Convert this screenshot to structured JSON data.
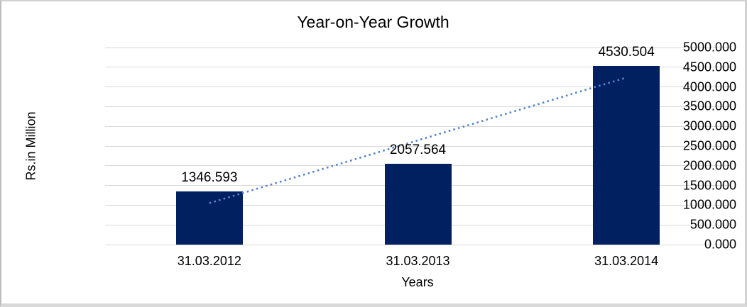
{
  "frame": {
    "border_color": "#d2d2d2",
    "background": "#ffffff"
  },
  "chart_data": {
    "type": "bar",
    "title": "Year-on-Year Growth",
    "xlabel": "Years",
    "ylabel": "Rs.in Million",
    "categories": [
      "31.03.2012",
      "31.03.2013",
      "31.03.2014"
    ],
    "values": [
      1346.593,
      2057.564,
      4530.504
    ],
    "data_labels": [
      "1346.593",
      "2057.564",
      "4530.504"
    ],
    "ylim": [
      0,
      5000
    ],
    "ytick_step": 500,
    "yticks": [
      "0.000",
      "500.000",
      "1000.000",
      "1500.000",
      "2000.000",
      "2500.000",
      "3000.000",
      "3500.000",
      "4000.000",
      "4500.000",
      "5000.000"
    ],
    "grid": true,
    "legend_position": "none",
    "trendline": {
      "type": "linear",
      "style": "dotted",
      "color": "#5585c6"
    },
    "colors": {
      "bar": "#002060",
      "gridline": "#d9d9d9",
      "trendline": "#5585c6",
      "text": "#000000"
    }
  }
}
